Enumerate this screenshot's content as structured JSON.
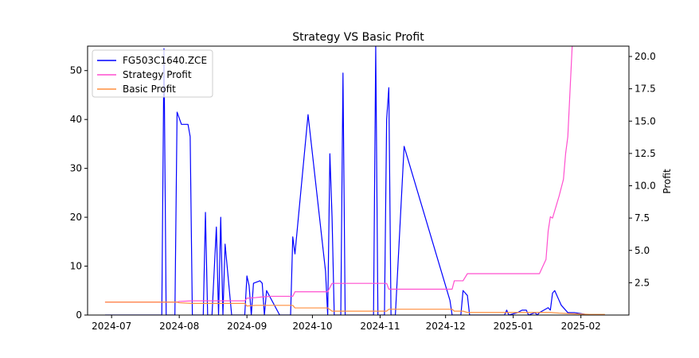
{
  "chart_data": {
    "type": "line",
    "title": "Strategy VS Basic Profit",
    "xlabel": "",
    "ylabel_left": "",
    "ylabel_right": "Profit",
    "x_ticks": [
      "2024-07",
      "2024-08",
      "2024-09",
      "2024-10",
      "2024-11",
      "2024-12",
      "2025-01",
      "2025-02"
    ],
    "y_left_ticks": [
      "0",
      "10",
      "20",
      "30",
      "40",
      "50"
    ],
    "y_right_ticks": [
      "2.5",
      "5.0",
      "7.5",
      "10.0",
      "12.5",
      "15.0",
      "17.5",
      "20.0"
    ],
    "xlim": [
      "2024-06-20",
      "2025-02-23"
    ],
    "ylim_left": [
      0,
      55
    ],
    "ylim_right": [
      0,
      20.8
    ],
    "grid": false,
    "legend_position": "upper-left",
    "series": [
      {
        "name": "FG503C1640.ZCE",
        "axis": "left",
        "color": "#0000ff",
        "points": [
          [
            "2024-06-28",
            0
          ],
          [
            "2024-07-24",
            0
          ],
          [
            "2024-07-25",
            54.5
          ],
          [
            "2024-07-26",
            0
          ],
          [
            "2024-07-30",
            0
          ],
          [
            "2024-07-31",
            41.5
          ],
          [
            "2024-08-02",
            39
          ],
          [
            "2024-08-05",
            39
          ],
          [
            "2024-08-06",
            36.5
          ],
          [
            "2024-08-07",
            0
          ],
          [
            "2024-08-12",
            0
          ],
          [
            "2024-08-13",
            21
          ],
          [
            "2024-08-14",
            0
          ],
          [
            "2024-08-16",
            0
          ],
          [
            "2024-08-18",
            18
          ],
          [
            "2024-08-19",
            0
          ],
          [
            "2024-08-20",
            20
          ],
          [
            "2024-08-21",
            0
          ],
          [
            "2024-08-22",
            14.5
          ],
          [
            "2024-08-25",
            0
          ],
          [
            "2024-08-31",
            0
          ],
          [
            "2024-09-01",
            8
          ],
          [
            "2024-09-02",
            6
          ],
          [
            "2024-09-03",
            0
          ],
          [
            "2024-09-04",
            6.5
          ],
          [
            "2024-09-07",
            7
          ],
          [
            "2024-09-08",
            6.5
          ],
          [
            "2024-09-09",
            0
          ],
          [
            "2024-09-10",
            5
          ],
          [
            "2024-09-16",
            0
          ],
          [
            "2024-09-21",
            0
          ],
          [
            "2024-09-22",
            16
          ],
          [
            "2024-09-23",
            12.5
          ],
          [
            "2024-09-29",
            41
          ],
          [
            "2024-10-07",
            9
          ],
          [
            "2024-10-08",
            0
          ],
          [
            "2024-10-09",
            33
          ],
          [
            "2024-10-10",
            20
          ],
          [
            "2024-10-11",
            0
          ],
          [
            "2024-10-14",
            0
          ],
          [
            "2024-10-15",
            49.5
          ],
          [
            "2024-10-16",
            0
          ],
          [
            "2024-10-29",
            0
          ],
          [
            "2024-10-30",
            55
          ],
          [
            "2024-10-31",
            0
          ],
          [
            "2024-11-03",
            0
          ],
          [
            "2024-11-04",
            40
          ],
          [
            "2024-11-05",
            46.5
          ],
          [
            "2024-11-06",
            0
          ],
          [
            "2024-11-08",
            0
          ],
          [
            "2024-11-12",
            34.5
          ],
          [
            "2024-12-03",
            3
          ],
          [
            "2024-12-04",
            0
          ],
          [
            "2024-12-08",
            0
          ],
          [
            "2024-12-09",
            5
          ],
          [
            "2024-12-11",
            4
          ],
          [
            "2024-12-12",
            0
          ],
          [
            "2024-12-28",
            0
          ],
          [
            "2024-12-29",
            1
          ],
          [
            "2024-12-30",
            0
          ],
          [
            "2025-01-03",
            0.5
          ],
          [
            "2025-01-05",
            1
          ],
          [
            "2025-01-07",
            1
          ],
          [
            "2025-01-08",
            0
          ],
          [
            "2025-01-11",
            0.5
          ],
          [
            "2025-01-12",
            0
          ],
          [
            "2025-01-13",
            0.5
          ],
          [
            "2025-01-15",
            1
          ],
          [
            "2025-01-17",
            1.5
          ],
          [
            "2025-01-18",
            1
          ],
          [
            "2025-01-19",
            4.5
          ],
          [
            "2025-01-20",
            5
          ],
          [
            "2025-01-22",
            3
          ],
          [
            "2025-01-23",
            2
          ],
          [
            "2025-01-26",
            0.5
          ],
          [
            "2025-01-29",
            0.5
          ],
          [
            "2025-02-01",
            0.3
          ],
          [
            "2025-02-05",
            0
          ],
          [
            "2025-02-12",
            0
          ]
        ]
      },
      {
        "name": "Strategy Profit",
        "axis": "right",
        "color": "#ff4fcf",
        "points": [
          [
            "2024-06-28",
            1.0
          ],
          [
            "2024-07-31",
            1.0
          ],
          [
            "2024-08-01",
            1.05
          ],
          [
            "2024-08-07",
            1.1
          ],
          [
            "2024-08-31",
            1.1
          ],
          [
            "2024-09-01",
            1.3
          ],
          [
            "2024-09-05",
            1.35
          ],
          [
            "2024-09-08",
            1.4
          ],
          [
            "2024-09-12",
            1.45
          ],
          [
            "2024-09-22",
            1.45
          ],
          [
            "2024-09-23",
            1.8
          ],
          [
            "2024-10-08",
            1.8
          ],
          [
            "2024-10-10",
            2.45
          ],
          [
            "2024-11-04",
            2.45
          ],
          [
            "2024-11-05",
            2.0
          ],
          [
            "2024-12-04",
            2.0
          ],
          [
            "2024-12-05",
            2.65
          ],
          [
            "2024-12-09",
            2.65
          ],
          [
            "2024-12-11",
            3.2
          ],
          [
            "2025-01-11",
            3.2
          ],
          [
            "2025-01-13",
            3.2
          ],
          [
            "2025-01-16",
            4.3
          ],
          [
            "2025-01-17",
            6.5
          ],
          [
            "2025-01-18",
            7.6
          ],
          [
            "2025-01-19",
            7.5
          ],
          [
            "2025-01-22",
            9.2
          ],
          [
            "2025-01-24",
            10.5
          ],
          [
            "2025-01-25",
            12.5
          ],
          [
            "2025-01-26",
            13.8
          ],
          [
            "2025-01-28",
            20.8
          ]
        ]
      },
      {
        "name": "Basic Profit",
        "axis": "right",
        "color": "#ff8f3f",
        "points": [
          [
            "2024-06-28",
            1.0
          ],
          [
            "2024-07-31",
            1.0
          ],
          [
            "2024-08-01",
            0.95
          ],
          [
            "2024-08-07",
            0.9
          ],
          [
            "2024-08-31",
            0.9
          ],
          [
            "2024-09-01",
            0.7
          ],
          [
            "2024-09-05",
            0.75
          ],
          [
            "2024-09-22",
            0.75
          ],
          [
            "2024-09-23",
            0.55
          ],
          [
            "2024-10-08",
            0.55
          ],
          [
            "2024-10-10",
            0.3
          ],
          [
            "2024-11-04",
            0.3
          ],
          [
            "2024-11-05",
            0.45
          ],
          [
            "2024-12-04",
            0.45
          ],
          [
            "2024-12-05",
            0.3
          ],
          [
            "2024-12-09",
            0.3
          ],
          [
            "2024-12-11",
            0.2
          ],
          [
            "2025-01-11",
            0.2
          ],
          [
            "2025-01-18",
            0.2
          ],
          [
            "2025-01-22",
            0.15
          ],
          [
            "2025-01-28",
            0.1
          ],
          [
            "2025-02-05",
            0.05
          ],
          [
            "2025-02-12",
            0.05
          ]
        ]
      }
    ]
  }
}
